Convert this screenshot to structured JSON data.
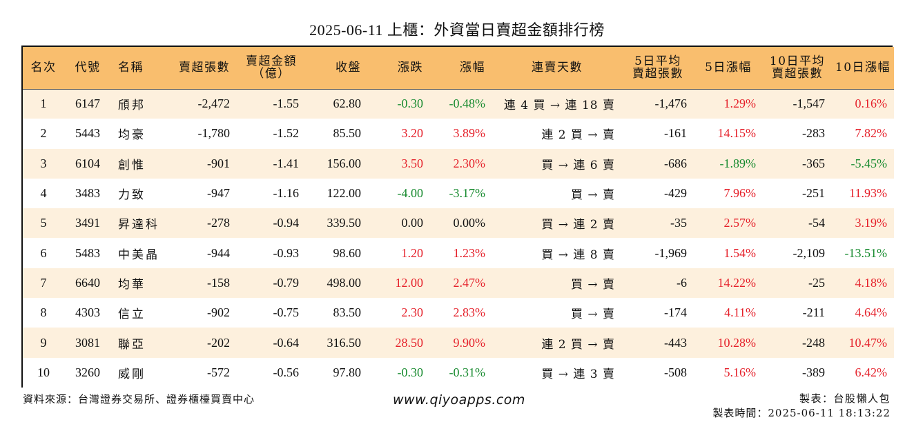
{
  "title": "2025-06-11 上櫃：外資當日賣超金額排行榜",
  "columns": {
    "rank": "名次",
    "code": "代號",
    "name": "名稱",
    "sell_lots": "賣超張數",
    "sell_amount_l1": "賣超金額",
    "sell_amount_l2": "（億）",
    "close": "收盤",
    "change": "漲跌",
    "change_pct": "漲幅",
    "streak": "連賣天數",
    "avg5_l1": "5日平均",
    "avg5_l2": "賣超張數",
    "pct5": "5日漲幅",
    "avg10_l1": "10日平均",
    "avg10_l2": "賣超張數",
    "pct10": "10日漲幅"
  },
  "rows": [
    {
      "rank": "1",
      "code": "6147",
      "name": "頎邦",
      "sell_lots": "-2,472",
      "sell_amount": "-1.55",
      "close": "62.80",
      "change": "-0.30",
      "change_pct": "-0.48%",
      "streak": "連 4 買 → 連 18 賣",
      "avg5": "-1,476",
      "pct5": "1.29%",
      "avg10": "-1,547",
      "pct10": "0.16%"
    },
    {
      "rank": "2",
      "code": "5443",
      "name": "均豪",
      "sell_lots": "-1,780",
      "sell_amount": "-1.52",
      "close": "85.50",
      "change": "3.20",
      "change_pct": "3.89%",
      "streak": "連 2 買 → 賣",
      "avg5": "-161",
      "pct5": "14.15%",
      "avg10": "-283",
      "pct10": "7.82%"
    },
    {
      "rank": "3",
      "code": "6104",
      "name": "創惟",
      "sell_lots": "-901",
      "sell_amount": "-1.41",
      "close": "156.00",
      "change": "3.50",
      "change_pct": "2.30%",
      "streak": "買 → 連 6 賣",
      "avg5": "-686",
      "pct5": "-1.89%",
      "avg10": "-365",
      "pct10": "-5.45%"
    },
    {
      "rank": "4",
      "code": "3483",
      "name": "力致",
      "sell_lots": "-947",
      "sell_amount": "-1.16",
      "close": "122.00",
      "change": "-4.00",
      "change_pct": "-3.17%",
      "streak": "買 → 賣",
      "avg5": "-429",
      "pct5": "7.96%",
      "avg10": "-251",
      "pct10": "11.93%"
    },
    {
      "rank": "5",
      "code": "3491",
      "name": "昇達科",
      "sell_lots": "-278",
      "sell_amount": "-0.94",
      "close": "339.50",
      "change": "0.00",
      "change_pct": "0.00%",
      "streak": "買 → 連 2 賣",
      "avg5": "-35",
      "pct5": "2.57%",
      "avg10": "-54",
      "pct10": "3.19%"
    },
    {
      "rank": "6",
      "code": "5483",
      "name": "中美晶",
      "sell_lots": "-944",
      "sell_amount": "-0.93",
      "close": "98.60",
      "change": "1.20",
      "change_pct": "1.23%",
      "streak": "買 → 連 8 賣",
      "avg5": "-1,969",
      "pct5": "1.54%",
      "avg10": "-2,109",
      "pct10": "-13.51%"
    },
    {
      "rank": "7",
      "code": "6640",
      "name": "均華",
      "sell_lots": "-158",
      "sell_amount": "-0.79",
      "close": "498.00",
      "change": "12.00",
      "change_pct": "2.47%",
      "streak": "買 → 賣",
      "avg5": "-6",
      "pct5": "14.22%",
      "avg10": "-25",
      "pct10": "4.18%"
    },
    {
      "rank": "8",
      "code": "4303",
      "name": "信立",
      "sell_lots": "-902",
      "sell_amount": "-0.75",
      "close": "83.50",
      "change": "2.30",
      "change_pct": "2.83%",
      "streak": "買 → 賣",
      "avg5": "-174",
      "pct5": "4.11%",
      "avg10": "-211",
      "pct10": "4.64%"
    },
    {
      "rank": "9",
      "code": "3081",
      "name": "聯亞",
      "sell_lots": "-202",
      "sell_amount": "-0.64",
      "close": "316.50",
      "change": "28.50",
      "change_pct": "9.90%",
      "streak": "連 2 買 → 賣",
      "avg5": "-443",
      "pct5": "10.28%",
      "avg10": "-248",
      "pct10": "10.47%"
    },
    {
      "rank": "10",
      "code": "3260",
      "name": "威剛",
      "sell_lots": "-572",
      "sell_amount": "-0.56",
      "close": "97.80",
      "change": "-0.30",
      "change_pct": "-0.31%",
      "streak": "買 → 連 3 賣",
      "avg5": "-508",
      "pct5": "5.16%",
      "avg10": "-389",
      "pct10": "6.42%"
    }
  ],
  "footer": {
    "source": "資料來源：台灣證券交易所、證券櫃檯買賣中心",
    "website": "www.qiyoapps.com",
    "maker": "製表：台股懶人包",
    "made_time": "製表時間：2025-06-11 18:13:22"
  },
  "colors": {
    "header_bg": "#f9be6e",
    "stripe_bg": "#fdf0dd",
    "up": "#e5202a",
    "down": "#168a2e"
  }
}
